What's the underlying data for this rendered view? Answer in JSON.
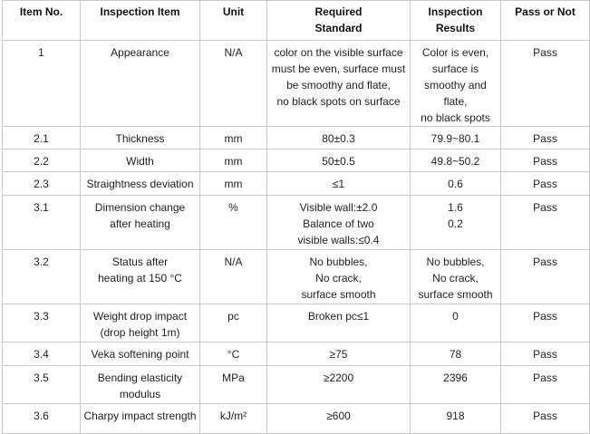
{
  "headers": [
    "Item No.",
    "Inspection Item",
    "Unit",
    "Required\nStandard",
    "Inspection\nResults",
    "Pass or Not"
  ],
  "rows": [
    [
      "1",
      "Appearance",
      "N/A",
      "color on the visible surface\nmust be even, surface must\nbe smoothy and flate,\nno black spots on surface",
      "Color  is even,\nsurface is\nsmoothy and flate,\nno black spots",
      "Pass"
    ],
    [
      "2.1",
      "Thickness",
      "mm",
      "80±0.3",
      "79.9~80.1",
      "Pass"
    ],
    [
      "2.2",
      "Width",
      "mm",
      "50±0.5",
      "49.8~50.2",
      "Pass"
    ],
    [
      "2.3",
      "Straightness deviation",
      "mm",
      "≤1",
      "0.6",
      "Pass"
    ],
    [
      "3.1",
      "Dimension change\nafter heating",
      "%",
      "Visible wall:±2.0\nBalance of two\nvisible walls:≤0.4",
      "1.6\n0.2",
      "Pass"
    ],
    [
      "3.2",
      "Status after\nheating at 150 °C",
      "N/A",
      "No bubbles,\nNo crack,\nsurface smooth",
      "No bubbles,\nNo crack,\nsurface smooth",
      "Pass"
    ],
    [
      "3.3",
      "Weight drop impact\n(drop height 1m)",
      "pc",
      "Broken pc≤1",
      "0",
      "Pass"
    ],
    [
      "3.4",
      "Veka softening point",
      "°C",
      "≥75",
      "78",
      "Pass"
    ],
    [
      "3.5",
      "Bending elasticity\nmodulus",
      "MPa",
      "≥2200",
      "2396",
      "Pass"
    ],
    [
      "3.6",
      "Charpy impact strength",
      "kJ/m²",
      "≥600",
      "918",
      "Pass"
    ]
  ]
}
